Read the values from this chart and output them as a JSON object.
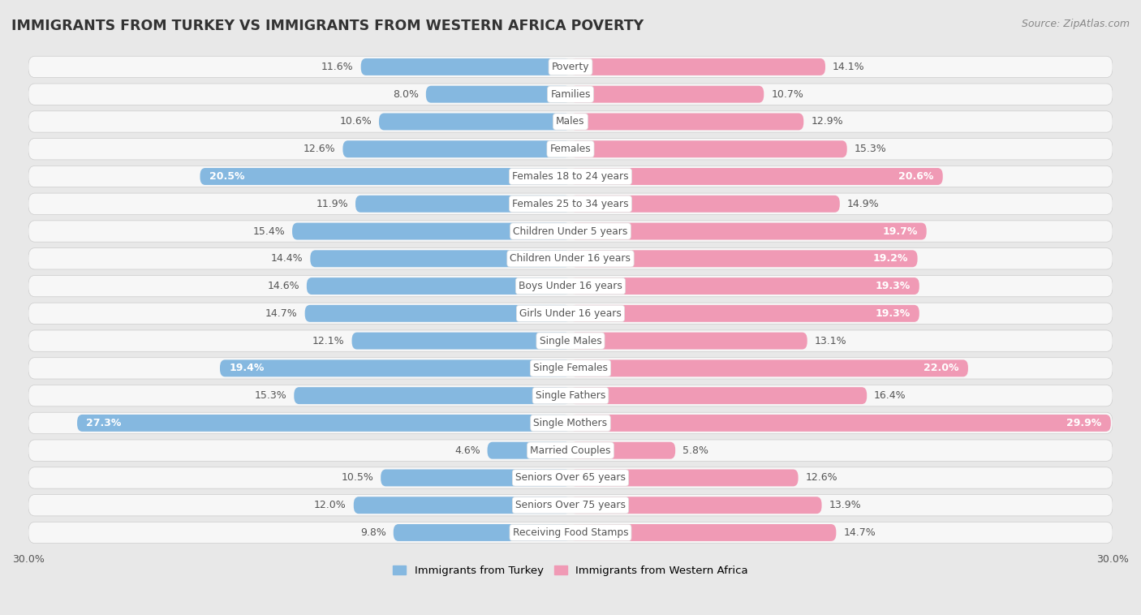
{
  "title": "IMMIGRANTS FROM TURKEY VS IMMIGRANTS FROM WESTERN AFRICA POVERTY",
  "source": "Source: ZipAtlas.com",
  "categories": [
    "Poverty",
    "Families",
    "Males",
    "Females",
    "Females 18 to 24 years",
    "Females 25 to 34 years",
    "Children Under 5 years",
    "Children Under 16 years",
    "Boys Under 16 years",
    "Girls Under 16 years",
    "Single Males",
    "Single Females",
    "Single Fathers",
    "Single Mothers",
    "Married Couples",
    "Seniors Over 65 years",
    "Seniors Over 75 years",
    "Receiving Food Stamps"
  ],
  "turkey_values": [
    11.6,
    8.0,
    10.6,
    12.6,
    20.5,
    11.9,
    15.4,
    14.4,
    14.6,
    14.7,
    12.1,
    19.4,
    15.3,
    27.3,
    4.6,
    10.5,
    12.0,
    9.8
  ],
  "west_africa_values": [
    14.1,
    10.7,
    12.9,
    15.3,
    20.6,
    14.9,
    19.7,
    19.2,
    19.3,
    19.3,
    13.1,
    22.0,
    16.4,
    29.9,
    5.8,
    12.6,
    13.9,
    14.7
  ],
  "turkey_color": "#85b8e0",
  "west_africa_color": "#f09ab5",
  "axis_max": 30.0,
  "bg_color": "#e8e8e8",
  "row_bg_light": "#f5f5f5",
  "row_bg_dark": "#f5f5f5",
  "label_color": "#555555",
  "title_color": "#333333",
  "value_inside_threshold": 17.0,
  "legend_turkey": "Immigrants from Turkey",
  "legend_west_africa": "Immigrants from Western Africa"
}
